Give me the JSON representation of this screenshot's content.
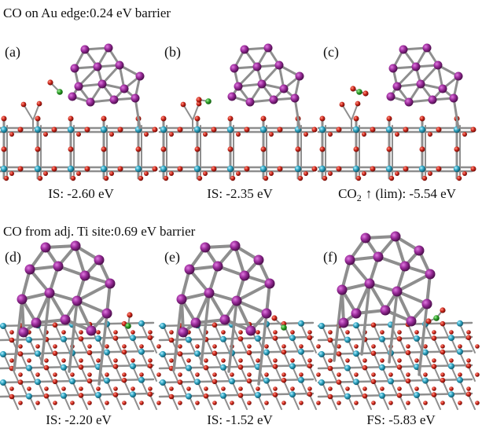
{
  "section_1": {
    "title": "CO on Au edge:0.24 eV barrier",
    "panels": [
      {
        "label": "(a)",
        "caption": "IS: -2.60 eV"
      },
      {
        "label": "(b)",
        "caption": "IS: -2.35 eV"
      },
      {
        "label": "(c)",
        "caption": {
          "main": "CO",
          "sub": "2",
          "rest": "↑ (lim): -5.54 eV"
        }
      }
    ]
  },
  "section_2": {
    "title": "CO from adj. Ti site:0.69 eV barrier",
    "panels": [
      {
        "label": "(d)",
        "caption": "IS: -2.20 eV"
      },
      {
        "label": "(e)",
        "caption": "IS: -1.52 eV"
      },
      {
        "label": "(f)",
        "caption": "FS: -5.83 eV"
      }
    ]
  }
}
